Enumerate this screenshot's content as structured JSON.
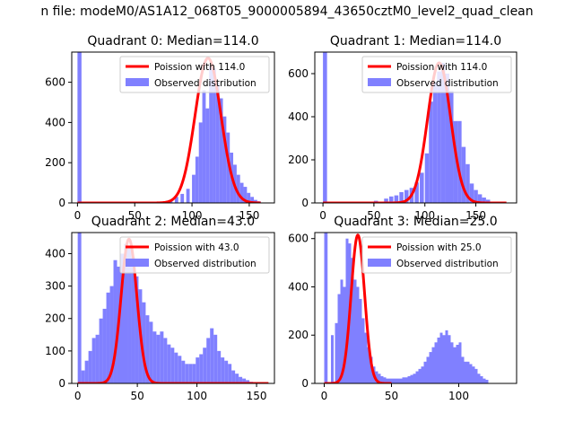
{
  "figure": {
    "suptitle": "n file: modeM0/AS1A12_068T05_9000005894_43650cztM0_level2_quad_clean"
  },
  "chart_data": [
    {
      "type": "histogram+line",
      "title": "Quadrant 0: Median=114.0",
      "xlim": [
        -5,
        172
      ],
      "ylim": [
        0,
        750
      ],
      "xticks": [
        0,
        50,
        100,
        150
      ],
      "yticks": [
        0,
        200,
        400,
        600
      ],
      "grid": false,
      "legend_position": "upper-right",
      "colors": {
        "fit": "#ff0000",
        "hist": "#8080ff"
      },
      "fit": {
        "name": "Poission with 114.0",
        "peak": 720,
        "mu": 114,
        "sigma": 11.3,
        "x_from": 0,
        "x_to": 160
      },
      "hist": {
        "name": "Observed distribution",
        "outlier_bar": {
          "x0": 0,
          "x1": 3.5,
          "value": 750
        },
        "bins": [
          [
            65,
            3
          ],
          [
            70,
            5
          ],
          [
            75,
            8
          ],
          [
            80,
            15
          ],
          [
            85,
            30
          ],
          [
            90,
            45
          ],
          [
            95,
            70
          ],
          [
            100,
            140
          ],
          [
            103,
            230
          ],
          [
            106,
            400
          ],
          [
            109,
            560
          ],
          [
            112,
            470
          ],
          [
            115,
            680
          ],
          [
            118,
            670
          ],
          [
            121,
            600
          ],
          [
            124,
            520
          ],
          [
            127,
            430
          ],
          [
            130,
            350
          ],
          [
            133,
            250
          ],
          [
            136,
            190
          ],
          [
            139,
            140
          ],
          [
            142,
            100
          ],
          [
            145,
            80
          ],
          [
            148,
            50
          ],
          [
            151,
            30
          ],
          [
            154,
            15
          ],
          [
            157,
            8
          ]
        ],
        "bin_width": 3
      }
    },
    {
      "type": "histogram+line",
      "title": "Quadrant 1: Median=114.0",
      "xlim": [
        -8,
        190
      ],
      "ylim": [
        0,
        700
      ],
      "xticks": [
        0,
        50,
        100,
        150
      ],
      "yticks": [
        0,
        200,
        400,
        600
      ],
      "grid": false,
      "legend_position": "upper-right",
      "colors": {
        "fit": "#ff0000",
        "hist": "#8080ff"
      },
      "fit": {
        "name": "Poission with 114.0",
        "peak": 650,
        "mu": 114,
        "sigma": 11.3,
        "x_from": 0,
        "x_to": 180
      },
      "hist": {
        "name": "Observed distribution",
        "outlier_bar": {
          "x0": 0,
          "x1": 4,
          "value": 700
        },
        "bins": [
          [
            40,
            5
          ],
          [
            50,
            10
          ],
          [
            60,
            20
          ],
          [
            65,
            30
          ],
          [
            70,
            35
          ],
          [
            75,
            50
          ],
          [
            80,
            60
          ],
          [
            85,
            70
          ],
          [
            90,
            95
          ],
          [
            95,
            140
          ],
          [
            100,
            230
          ],
          [
            104,
            470
          ],
          [
            108,
            560
          ],
          [
            112,
            610
          ],
          [
            116,
            650
          ],
          [
            120,
            600
          ],
          [
            124,
            520
          ],
          [
            128,
            380
          ],
          [
            132,
            380
          ],
          [
            136,
            260
          ],
          [
            140,
            180
          ],
          [
            144,
            90
          ],
          [
            148,
            60
          ],
          [
            152,
            40
          ],
          [
            156,
            25
          ],
          [
            160,
            15
          ],
          [
            165,
            5
          ]
        ],
        "bin_width": 4
      }
    },
    {
      "type": "histogram+line",
      "title": "Quadrant 2: Median=43.0",
      "xlim": [
        -5,
        165
      ],
      "ylim": [
        0,
        465
      ],
      "xticks": [
        0,
        50,
        100,
        150
      ],
      "yticks": [
        0,
        100,
        200,
        300,
        400
      ],
      "grid": false,
      "legend_position": "upper-right",
      "colors": {
        "fit": "#ff0000",
        "hist": "#8080ff"
      },
      "fit": {
        "name": "Poission with 43.0",
        "peak": 445,
        "mu": 43,
        "sigma": 6.6,
        "x_from": 0,
        "x_to": 160
      },
      "hist": {
        "name": "Observed distribution",
        "outlier_bar": {
          "x0": 0,
          "x1": 3,
          "value": 465
        },
        "bins": [
          [
            3,
            40
          ],
          [
            6,
            70
          ],
          [
            9,
            100
          ],
          [
            12,
            140
          ],
          [
            15,
            150
          ],
          [
            18,
            200
          ],
          [
            21,
            230
          ],
          [
            24,
            280
          ],
          [
            27,
            300
          ],
          [
            30,
            380
          ],
          [
            33,
            360
          ],
          [
            36,
            400
          ],
          [
            39,
            430
          ],
          [
            42,
            420
          ],
          [
            45,
            390
          ],
          [
            48,
            330
          ],
          [
            51,
            290
          ],
          [
            54,
            250
          ],
          [
            57,
            210
          ],
          [
            60,
            190
          ],
          [
            63,
            160
          ],
          [
            66,
            150
          ],
          [
            69,
            160
          ],
          [
            72,
            140
          ],
          [
            75,
            120
          ],
          [
            78,
            110
          ],
          [
            81,
            95
          ],
          [
            84,
            85
          ],
          [
            87,
            70
          ],
          [
            90,
            60
          ],
          [
            93,
            60
          ],
          [
            96,
            60
          ],
          [
            99,
            80
          ],
          [
            102,
            90
          ],
          [
            105,
            110
          ],
          [
            108,
            140
          ],
          [
            111,
            170
          ],
          [
            114,
            150
          ],
          [
            117,
            100
          ],
          [
            120,
            80
          ],
          [
            123,
            70
          ],
          [
            126,
            60
          ],
          [
            129,
            40
          ],
          [
            132,
            30
          ],
          [
            135,
            20
          ],
          [
            138,
            15
          ],
          [
            141,
            10
          ],
          [
            144,
            5
          ]
        ],
        "bin_width": 3
      }
    },
    {
      "type": "histogram+line",
      "title": "Quadrant 3: Median=25.0",
      "xlim": [
        -7,
        143
      ],
      "ylim": [
        0,
        625
      ],
      "xticks": [
        0,
        50,
        100
      ],
      "yticks": [
        0,
        200,
        400,
        600
      ],
      "grid": false,
      "legend_position": "upper-right",
      "colors": {
        "fit": "#ff0000",
        "hist": "#8080ff"
      },
      "fit": {
        "name": "Poission with 25.0",
        "peak": 615,
        "mu": 25,
        "sigma": 5.0,
        "x_from": 0,
        "x_to": 50
      },
      "hist": {
        "name": "Observed distribution",
        "outlier_bar": {
          "x0": 0,
          "x1": 2.5,
          "value": 625
        },
        "bins": [
          [
            5,
            200
          ],
          [
            8,
            250
          ],
          [
            10,
            370
          ],
          [
            12,
            430
          ],
          [
            14,
            400
          ],
          [
            16,
            600
          ],
          [
            18,
            580
          ],
          [
            20,
            520
          ],
          [
            22,
            430
          ],
          [
            24,
            400
          ],
          [
            26,
            350
          ],
          [
            28,
            270
          ],
          [
            30,
            210
          ],
          [
            32,
            150
          ],
          [
            34,
            110
          ],
          [
            36,
            70
          ],
          [
            38,
            50
          ],
          [
            40,
            40
          ],
          [
            42,
            30
          ],
          [
            44,
            25
          ],
          [
            46,
            20
          ],
          [
            48,
            20
          ],
          [
            50,
            20
          ],
          [
            52,
            20
          ],
          [
            54,
            20
          ],
          [
            56,
            20
          ],
          [
            58,
            25
          ],
          [
            60,
            25
          ],
          [
            62,
            30
          ],
          [
            64,
            35
          ],
          [
            66,
            40
          ],
          [
            68,
            50
          ],
          [
            70,
            60
          ],
          [
            72,
            70
          ],
          [
            74,
            90
          ],
          [
            76,
            110
          ],
          [
            78,
            130
          ],
          [
            80,
            150
          ],
          [
            82,
            170
          ],
          [
            84,
            190
          ],
          [
            86,
            210
          ],
          [
            88,
            200
          ],
          [
            90,
            220
          ],
          [
            92,
            200
          ],
          [
            94,
            170
          ],
          [
            96,
            150
          ],
          [
            98,
            160
          ],
          [
            100,
            170
          ],
          [
            102,
            110
          ],
          [
            104,
            90
          ],
          [
            106,
            90
          ],
          [
            108,
            80
          ],
          [
            110,
            70
          ],
          [
            112,
            60
          ],
          [
            114,
            40
          ],
          [
            116,
            30
          ],
          [
            118,
            20
          ],
          [
            120,
            15
          ]
        ],
        "bin_width": 2
      }
    }
  ],
  "layout_note": null
}
